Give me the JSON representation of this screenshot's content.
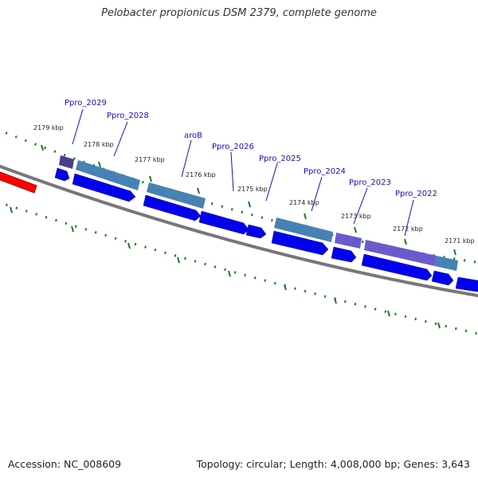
{
  "title": "Pelobacter propionicus DSM 2379, complete genome",
  "footer": {
    "accession": "Accession: NC_008609",
    "summary": "Topology: circular; Length: 4,008,000 bp; Genes: 3,643"
  },
  "scale_labels": [
    "2179 kbp",
    "2178 kbp",
    "2177 kbp",
    "2176 kbp",
    "2175 kbp",
    "2174 kbp",
    "2173 kbp",
    "2172 kbp",
    "2171 kbp"
  ],
  "gene_labels": [
    "Ppro_2029",
    "Ppro_2028",
    "aroB",
    "Ppro_2026",
    "Ppro_2025",
    "Ppro_2024",
    "Ppro_2023",
    "Ppro_2022"
  ],
  "colors": {
    "backbone": "#777777",
    "cds_arrow": "#0000ee",
    "gene_steel": "#4682b4",
    "gene_purple": "#6a5acd",
    "gene_dark_purple": "#483d8b",
    "rna_red": "#ff0000",
    "tick_green": "#1a7a1a"
  }
}
